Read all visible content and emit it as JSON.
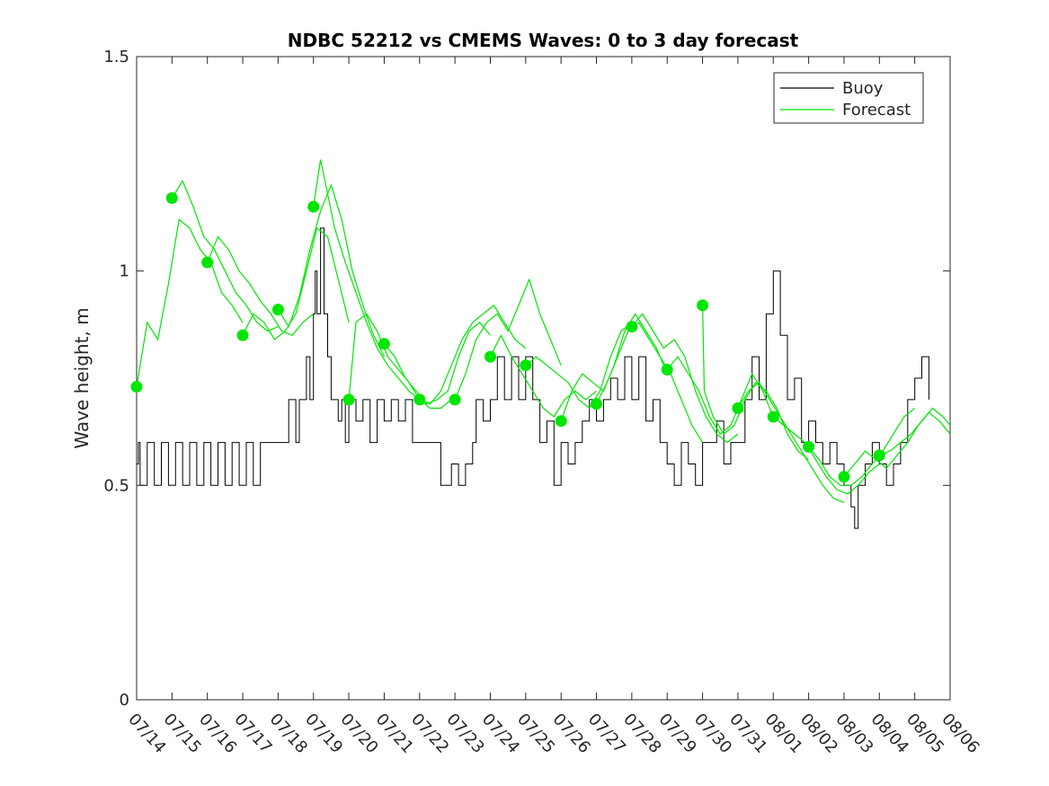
{
  "chart_data": {
    "type": "line",
    "title": "NDBC 52212 vs CMEMS Waves: 0 to 3 day forecast",
    "xlabel": "",
    "ylabel": "Wave height, m",
    "x_tick_labels": [
      "07/14",
      "07/15",
      "07/16",
      "07/17",
      "07/18",
      "07/19",
      "07/20",
      "07/21",
      "07/22",
      "07/23",
      "07/24",
      "07/25",
      "07/26",
      "07/27",
      "07/28",
      "07/29",
      "07/30",
      "07/31",
      "08/01",
      "08/02",
      "08/03",
      "08/04",
      "08/05",
      "08/06"
    ],
    "y_tick_labels": [
      "0",
      "0.5",
      "1",
      "1.5"
    ],
    "ylim": [
      0,
      1.5
    ],
    "xlim_days": [
      0,
      23
    ],
    "grid": false,
    "legend_position": "top-right",
    "legend": [
      {
        "label": "Buoy",
        "color": "#000000"
      },
      {
        "label": "Forecast",
        "color": "#00e600"
      }
    ],
    "series": [
      {
        "name": "Buoy",
        "color": "#000000",
        "x": [
          0,
          0.05,
          0.1,
          0.3,
          0.5,
          0.7,
          0.9,
          1.1,
          1.3,
          1.5,
          1.7,
          1.9,
          2.1,
          2.3,
          2.5,
          2.7,
          2.9,
          3.1,
          3.3,
          3.5,
          3.5,
          4.0,
          4.1,
          4.3,
          4.5,
          4.6,
          4.8,
          4.9,
          5.0,
          5.05,
          5.1,
          5.2,
          5.3,
          5.4,
          5.5,
          5.7,
          5.8,
          5.9,
          6.0,
          6.2,
          6.4,
          6.6,
          6.8,
          7.0,
          7.2,
          7.4,
          7.6,
          7.8,
          8.0,
          8.3,
          8.6,
          8.9,
          9.1,
          9.3,
          9.5,
          9.6,
          9.8,
          10.0,
          10.2,
          10.4,
          10.6,
          10.8,
          11.0,
          11.2,
          11.4,
          11.6,
          11.8,
          12.0,
          12.2,
          12.4,
          12.6,
          12.8,
          13.0,
          13.2,
          13.4,
          13.6,
          13.8,
          14.0,
          14.2,
          14.4,
          14.6,
          14.8,
          15.0,
          15.2,
          15.4,
          15.6,
          15.8,
          16.0,
          16.2,
          16.4,
          16.6,
          16.8,
          17.0,
          17.2,
          17.4,
          17.6,
          17.8,
          18.0,
          18.2,
          18.4,
          18.6,
          18.8,
          19.0,
          19.2,
          19.4,
          19.6,
          19.8,
          20.0,
          20.2,
          20.3,
          20.4,
          20.6,
          20.8,
          21.0,
          21.2,
          21.4,
          21.6,
          21.8,
          22.0,
          22.2,
          22.4
        ],
        "values": [
          0.55,
          0.6,
          0.5,
          0.6,
          0.5,
          0.6,
          0.5,
          0.6,
          0.5,
          0.6,
          0.5,
          0.6,
          0.5,
          0.6,
          0.5,
          0.6,
          0.5,
          0.6,
          0.5,
          0.6,
          0.6,
          0.6,
          0.6,
          0.7,
          0.6,
          0.7,
          0.8,
          0.7,
          0.9,
          1.0,
          0.9,
          1.1,
          0.9,
          0.8,
          0.7,
          0.65,
          0.7,
          0.6,
          0.7,
          0.65,
          0.7,
          0.6,
          0.7,
          0.65,
          0.7,
          0.65,
          0.7,
          0.6,
          0.6,
          0.6,
          0.5,
          0.55,
          0.5,
          0.55,
          0.6,
          0.7,
          0.65,
          0.7,
          0.8,
          0.7,
          0.8,
          0.7,
          0.8,
          0.7,
          0.6,
          0.65,
          0.5,
          0.6,
          0.55,
          0.6,
          0.65,
          0.7,
          0.65,
          0.7,
          0.75,
          0.7,
          0.8,
          0.7,
          0.8,
          0.65,
          0.7,
          0.6,
          0.55,
          0.5,
          0.6,
          0.55,
          0.5,
          0.6,
          0.6,
          0.65,
          0.55,
          0.6,
          0.6,
          0.7,
          0.8,
          0.7,
          0.9,
          1.0,
          0.85,
          0.7,
          0.75,
          0.6,
          0.65,
          0.6,
          0.55,
          0.6,
          0.55,
          0.5,
          0.45,
          0.4,
          0.5,
          0.55,
          0.6,
          0.55,
          0.5,
          0.55,
          0.6,
          0.7,
          0.75,
          0.8,
          0.7
        ]
      }
    ],
    "forecast_markers": {
      "x": [
        0,
        1,
        2,
        3,
        4,
        5,
        6,
        7,
        8,
        9,
        10,
        11,
        12,
        13,
        14,
        15,
        16,
        17,
        18,
        19,
        20,
        21
      ],
      "values": [
        0.73,
        1.17,
        1.02,
        0.85,
        0.91,
        1.15,
        0.7,
        0.83,
        0.7,
        0.7,
        0.8,
        0.78,
        0.65,
        0.69,
        0.87,
        0.77,
        0.92,
        0.68,
        0.66,
        0.59,
        0.52,
        0.57
      ]
    },
    "forecast_runs": [
      {
        "x": [
          0,
          0.3,
          0.6,
          0.9,
          1.2,
          1.5,
          1.8,
          2.1,
          2.4,
          2.7,
          3.0
        ],
        "values": [
          0.73,
          0.88,
          0.84,
          0.97,
          1.12,
          1.1,
          1.05,
          1.02,
          0.95,
          0.92,
          0.88
        ]
      },
      {
        "x": [
          1,
          1.3,
          1.6,
          1.9,
          2.2,
          2.5,
          2.8,
          3.1,
          3.4,
          3.7,
          4.0
        ],
        "values": [
          1.17,
          1.21,
          1.15,
          1.08,
          1.05,
          1.0,
          0.95,
          0.92,
          0.88,
          0.86,
          0.87
        ]
      },
      {
        "x": [
          2,
          2.3,
          2.6,
          2.9,
          3.2,
          3.5,
          3.8,
          4.1,
          4.4,
          4.7,
          5.0
        ],
        "values": [
          1.02,
          1.08,
          1.05,
          1.0,
          0.97,
          0.93,
          0.9,
          0.86,
          0.85,
          0.88,
          0.9
        ]
      },
      {
        "x": [
          3,
          3.3,
          3.6,
          3.9,
          4.2,
          4.5,
          4.8,
          5.1,
          5.4,
          5.7,
          6.0
        ],
        "values": [
          0.85,
          0.9,
          0.88,
          0.84,
          0.86,
          0.9,
          1.0,
          1.1,
          1.08,
          0.98,
          0.88
        ]
      },
      {
        "x": [
          4,
          4.3,
          4.6,
          4.9,
          5.2,
          5.5,
          5.8,
          6.1,
          6.4,
          6.7,
          7.0
        ],
        "values": [
          0.91,
          0.87,
          0.94,
          1.05,
          1.14,
          1.2,
          1.12,
          1.0,
          0.92,
          0.85,
          0.8
        ]
      },
      {
        "x": [
          5,
          5.2,
          5.4,
          5.6,
          5.9,
          6.2,
          6.5,
          6.8,
          7.1,
          7.4,
          7.7,
          8.0
        ],
        "values": [
          1.15,
          1.26,
          1.18,
          1.1,
          1.02,
          0.95,
          0.88,
          0.82,
          0.78,
          0.75,
          0.72,
          0.7
        ]
      },
      {
        "x": [
          6,
          6.2,
          6.5,
          6.8,
          7.1,
          7.4,
          7.7,
          8.0,
          8.3,
          8.6,
          8.9
        ],
        "values": [
          0.7,
          0.88,
          0.9,
          0.86,
          0.8,
          0.77,
          0.74,
          0.7,
          0.68,
          0.68,
          0.7
        ]
      },
      {
        "x": [
          7,
          7.3,
          7.6,
          7.9,
          8.2,
          8.5,
          8.8,
          9.1,
          9.4,
          9.7,
          10.0
        ],
        "values": [
          0.83,
          0.8,
          0.75,
          0.72,
          0.69,
          0.7,
          0.72,
          0.8,
          0.86,
          0.88,
          0.85
        ]
      },
      {
        "x": [
          8,
          8.3,
          8.6,
          8.9,
          9.2,
          9.5,
          9.8,
          10.1,
          10.4,
          10.7,
          11.0
        ],
        "values": [
          0.7,
          0.69,
          0.72,
          0.78,
          0.84,
          0.88,
          0.9,
          0.92,
          0.88,
          0.84,
          0.82
        ]
      },
      {
        "x": [
          9,
          9.3,
          9.6,
          9.9,
          10.2,
          10.5,
          10.8,
          11.1,
          11.4,
          11.7,
          12.0
        ],
        "values": [
          0.7,
          0.76,
          0.84,
          0.88,
          0.9,
          0.86,
          0.92,
          0.98,
          0.9,
          0.84,
          0.78
        ]
      },
      {
        "x": [
          10,
          10.3,
          10.6,
          10.9,
          11.2,
          11.5,
          11.8,
          12.1,
          12.4,
          12.7,
          13.0
        ],
        "values": [
          0.8,
          0.85,
          0.8,
          0.76,
          0.72,
          0.68,
          0.66,
          0.7,
          0.72,
          0.7,
          0.72
        ]
      },
      {
        "x": [
          11,
          11.3,
          11.6,
          11.9,
          12.2,
          12.5,
          12.8,
          13.1,
          13.4,
          13.7,
          14.0
        ],
        "values": [
          0.78,
          0.8,
          0.78,
          0.76,
          0.74,
          0.7,
          0.68,
          0.72,
          0.8,
          0.86,
          0.88
        ]
      },
      {
        "x": [
          12,
          12.3,
          12.6,
          12.9,
          13.2,
          13.5,
          13.8,
          14.1,
          14.4,
          14.7,
          15.0
        ],
        "values": [
          0.65,
          0.72,
          0.76,
          0.74,
          0.72,
          0.78,
          0.86,
          0.9,
          0.86,
          0.82,
          0.76
        ]
      },
      {
        "x": [
          13,
          13.3,
          13.6,
          13.9,
          14.2,
          14.5,
          14.8,
          15.1,
          15.4,
          15.7,
          16.0
        ],
        "values": [
          0.69,
          0.74,
          0.8,
          0.86,
          0.88,
          0.84,
          0.8,
          0.76,
          0.7,
          0.64,
          0.6
        ]
      },
      {
        "x": [
          14,
          14.3,
          14.6,
          14.9,
          15.2,
          15.5,
          15.8,
          16.1,
          16.4,
          16.7,
          17.0
        ],
        "values": [
          0.87,
          0.9,
          0.86,
          0.82,
          0.84,
          0.8,
          0.72,
          0.66,
          0.62,
          0.6,
          0.62
        ]
      },
      {
        "x": [
          15,
          15.3,
          15.6,
          15.9,
          16.2,
          16.5,
          16.8,
          17.1,
          17.4,
          17.7,
          18.0
        ],
        "values": [
          0.77,
          0.8,
          0.76,
          0.72,
          0.66,
          0.62,
          0.64,
          0.7,
          0.76,
          0.72,
          0.66
        ]
      },
      {
        "x": [
          16,
          16.05,
          16.3,
          16.6,
          16.9,
          17.2,
          17.5,
          17.8,
          18.1,
          18.4,
          18.7,
          19.0
        ],
        "values": [
          0.92,
          0.72,
          0.66,
          0.62,
          0.64,
          0.7,
          0.74,
          0.72,
          0.68,
          0.62,
          0.58,
          0.56
        ]
      },
      {
        "x": [
          17,
          17.3,
          17.6,
          17.9,
          18.2,
          18.5,
          18.8,
          19.1,
          19.4,
          19.7,
          20.0
        ],
        "values": [
          0.68,
          0.72,
          0.74,
          0.7,
          0.66,
          0.62,
          0.58,
          0.54,
          0.5,
          0.47,
          0.46
        ]
      },
      {
        "x": [
          18,
          18.3,
          18.6,
          18.9,
          19.2,
          19.5,
          19.8,
          20.1,
          20.4,
          20.7,
          21.0
        ],
        "values": [
          0.66,
          0.64,
          0.62,
          0.6,
          0.56,
          0.52,
          0.49,
          0.48,
          0.5,
          0.53,
          0.55
        ]
      },
      {
        "x": [
          19,
          19.3,
          19.6,
          19.9,
          20.2,
          20.5,
          20.8,
          21.1,
          21.4,
          21.7,
          22.0
        ],
        "values": [
          0.59,
          0.56,
          0.52,
          0.5,
          0.5,
          0.52,
          0.55,
          0.58,
          0.62,
          0.66,
          0.68
        ]
      },
      {
        "x": [
          20,
          20.3,
          20.6,
          20.9,
          21.2,
          21.5,
          21.8,
          22.1,
          22.4,
          22.7,
          23.0
        ],
        "values": [
          0.52,
          0.55,
          0.58,
          0.56,
          0.54,
          0.57,
          0.6,
          0.64,
          0.67,
          0.65,
          0.62
        ]
      },
      {
        "x": [
          21,
          21.3,
          21.6,
          21.9,
          22.2,
          22.5,
          22.8,
          23.0
        ],
        "values": [
          0.57,
          0.58,
          0.6,
          0.62,
          0.65,
          0.68,
          0.66,
          0.64
        ]
      }
    ]
  }
}
